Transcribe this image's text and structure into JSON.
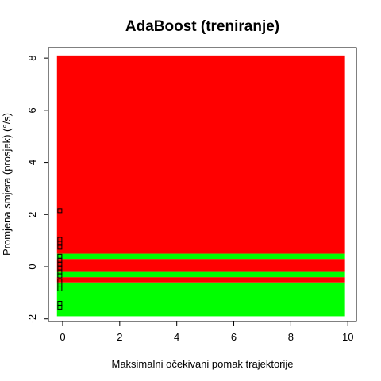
{
  "chart_data": {
    "type": "heatmap",
    "title": "AdaBoost (treniranje)",
    "xlabel": "Maksimalni očekivani pomak trajektorije",
    "ylabel": "Promjena smjera (prosjek) (°/s)",
    "xlim": [
      -0.5,
      10.3
    ],
    "ylim": [
      -2.1,
      8.4
    ],
    "x_ticks": [
      "0",
      "2",
      "4",
      "6",
      "8",
      "10"
    ],
    "y_ticks": [
      "-2",
      "0",
      "2",
      "4",
      "6",
      "8"
    ],
    "grid": false,
    "colors": {
      "class_a": "#ff0000",
      "class_b": "#00ff00",
      "points": "#000000"
    },
    "region_x": [
      -0.2,
      9.9
    ],
    "regions": [
      {
        "class": "class_b",
        "y0": -1.9,
        "y1": -0.6
      },
      {
        "class": "class_a",
        "y0": -0.6,
        "y1": -0.4
      },
      {
        "class": "class_b",
        "y0": -0.4,
        "y1": -0.2
      },
      {
        "class": "class_a",
        "y0": -0.2,
        "y1": 0.3
      },
      {
        "class": "class_b",
        "y0": 0.3,
        "y1": 0.5
      },
      {
        "class": "class_a",
        "y0": 0.5,
        "y1": 8.1
      }
    ],
    "points": [
      {
        "x": -0.1,
        "y": 2.15
      },
      {
        "x": -0.1,
        "y": 1.05
      },
      {
        "x": -0.1,
        "y": 0.9
      },
      {
        "x": -0.1,
        "y": 0.75
      },
      {
        "x": -0.1,
        "y": 0.4
      },
      {
        "x": -0.1,
        "y": 0.25
      },
      {
        "x": -0.1,
        "y": 0.1
      },
      {
        "x": -0.1,
        "y": -0.05
      },
      {
        "x": -0.1,
        "y": -0.2
      },
      {
        "x": -0.1,
        "y": -0.35
      },
      {
        "x": -0.1,
        "y": -0.55
      },
      {
        "x": -0.1,
        "y": -0.7
      },
      {
        "x": -0.1,
        "y": -0.85
      },
      {
        "x": -0.1,
        "y": -1.4
      },
      {
        "x": -0.1,
        "y": -1.55
      }
    ]
  }
}
